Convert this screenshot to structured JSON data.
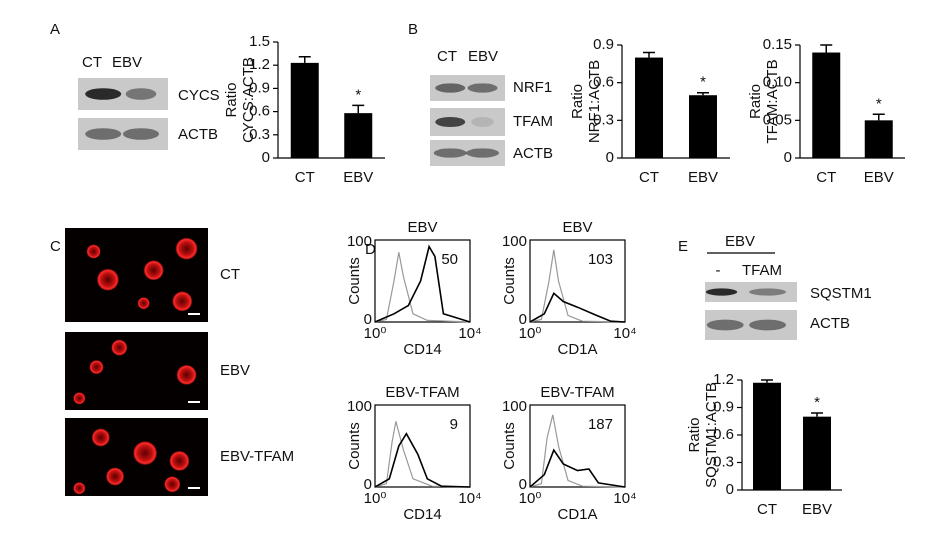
{
  "panel_labels": [
    "A",
    "B",
    "C",
    "D",
    "E"
  ],
  "blots": {
    "A": {
      "lanes": [
        "CT",
        "EBV"
      ],
      "bands": [
        "CYCS",
        "ACTB"
      ]
    },
    "B": {
      "lanes": [
        "CT",
        "EBV"
      ],
      "bands": [
        "NRF1",
        "TFAM",
        "ACTB"
      ]
    },
    "E": {
      "group": "EBV",
      "lanes": [
        "-",
        "TFAM"
      ],
      "bands": [
        "SQSTM1",
        "ACTB"
      ]
    }
  },
  "images": {
    "labels": [
      "CT",
      "EBV",
      "EBV-TFAM"
    ]
  },
  "flow": {
    "ylabel": "Counts",
    "yticks": [
      0,
      100
    ],
    "xticks": [
      "10⁰",
      "10⁴"
    ],
    "plots": [
      {
        "title": "EBV",
        "value": 50,
        "xlabel": "CD14"
      },
      {
        "title": "EBV",
        "value": 103,
        "xlabel": "CD1A"
      },
      {
        "title": "EBV-TFAM",
        "value": 9,
        "xlabel": "CD14"
      },
      {
        "title": "EBV-TFAM",
        "value": 187,
        "xlabel": "CD1A"
      }
    ]
  },
  "chart_data": [
    {
      "type": "bar",
      "ylabel": [
        "Ratio",
        "CYCS:ACTB"
      ],
      "categories": [
        "CT",
        "EBV"
      ],
      "values": [
        1.23,
        0.58
      ],
      "errors": [
        0.08,
        0.1
      ],
      "color": "#000000",
      "annotation": "*",
      "ylim": [
        0,
        1.5
      ],
      "yticks": [
        0,
        0.3,
        0.6,
        0.9,
        1.2,
        1.5
      ]
    },
    {
      "type": "bar",
      "ylabel": [
        "Ratio",
        "NRF1:ACTB"
      ],
      "categories": [
        "CT",
        "EBV"
      ],
      "values": [
        0.8,
        0.5
      ],
      "errors": [
        0.04,
        0.02
      ],
      "color": "#000000",
      "annotation": "*",
      "ylim": [
        0,
        0.9
      ],
      "yticks": [
        0,
        0.3,
        0.6,
        0.9
      ]
    },
    {
      "type": "bar",
      "ylabel": [
        "Ratio",
        "TFAM:ACTB"
      ],
      "categories": [
        "CT",
        "EBV"
      ],
      "values": [
        0.14,
        0.05
      ],
      "errors": [
        0.01,
        0.008
      ],
      "color": "#000000",
      "annotation": "*",
      "ylim": [
        0,
        0.15
      ],
      "yticks": [
        0,
        0.05,
        {
          "value": 0.1,
          "label": "0.10"
        },
        0.15
      ]
    },
    {
      "type": "bar",
      "ylabel": [
        "Ratio",
        "SQSTM1:ACTB"
      ],
      "categories": [
        "CT",
        "EBV"
      ],
      "values": [
        1.17,
        0.8
      ],
      "errors": [
        0.03,
        0.04
      ],
      "color": "#000000",
      "annotation": "*",
      "ylim": [
        0,
        1.2
      ],
      "yticks": [
        0,
        0.3,
        0.6,
        0.9,
        1.2
      ]
    }
  ]
}
